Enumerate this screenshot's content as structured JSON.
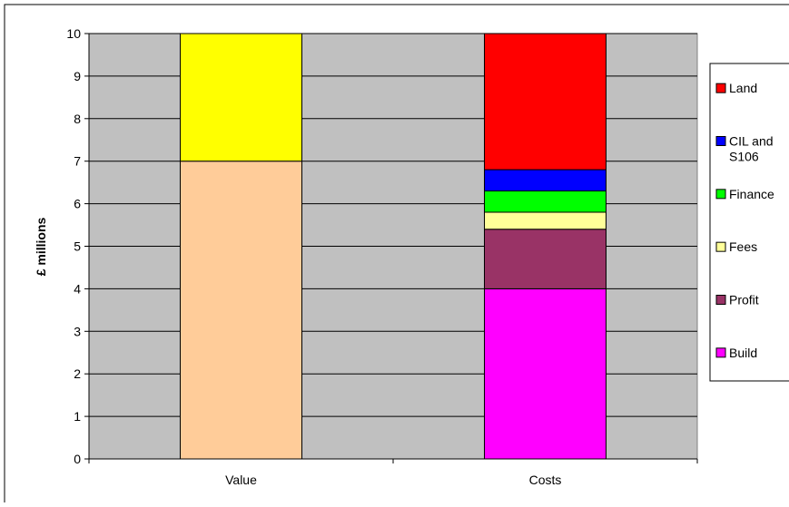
{
  "chart_data": {
    "type": "bar",
    "stacked": true,
    "title": "",
    "xlabel": "",
    "ylabel": "£ millions",
    "ylim": [
      0,
      10
    ],
    "yticks": [
      0,
      1,
      2,
      3,
      4,
      5,
      6,
      7,
      8,
      9,
      10
    ],
    "categories": [
      "Value",
      "Costs"
    ],
    "grid": true,
    "legend_position": "right",
    "plot_background": "#c0c0c0",
    "value_stack": [
      {
        "value": 7,
        "color": "#ffcc99"
      },
      {
        "value": 3,
        "color": "#ffff00"
      }
    ],
    "series": [
      {
        "name": "Build",
        "values": [
          null,
          4.0
        ],
        "color": "#ff00ff"
      },
      {
        "name": "Profit",
        "values": [
          null,
          1.4
        ],
        "color": "#993366"
      },
      {
        "name": "Fees",
        "values": [
          null,
          0.4
        ],
        "color": "#ffff99"
      },
      {
        "name": "Finance",
        "values": [
          null,
          0.5
        ],
        "color": "#00ff00"
      },
      {
        "name": "CIL and S106",
        "values": [
          null,
          0.5
        ],
        "color": "#0000ff"
      },
      {
        "name": "Land",
        "values": [
          null,
          3.2
        ],
        "color": "#ff0000"
      }
    ],
    "legend": [
      {
        "label_lines": [
          "Land"
        ],
        "color": "#ff0000"
      },
      {
        "label_lines": [
          "CIL and",
          "S106"
        ],
        "color": "#0000ff"
      },
      {
        "label_lines": [
          "Finance"
        ],
        "color": "#00ff00"
      },
      {
        "label_lines": [
          "Fees"
        ],
        "color": "#ffff99"
      },
      {
        "label_lines": [
          "Profit"
        ],
        "color": "#993366"
      },
      {
        "label_lines": [
          "Build"
        ],
        "color": "#ff00ff"
      }
    ]
  }
}
